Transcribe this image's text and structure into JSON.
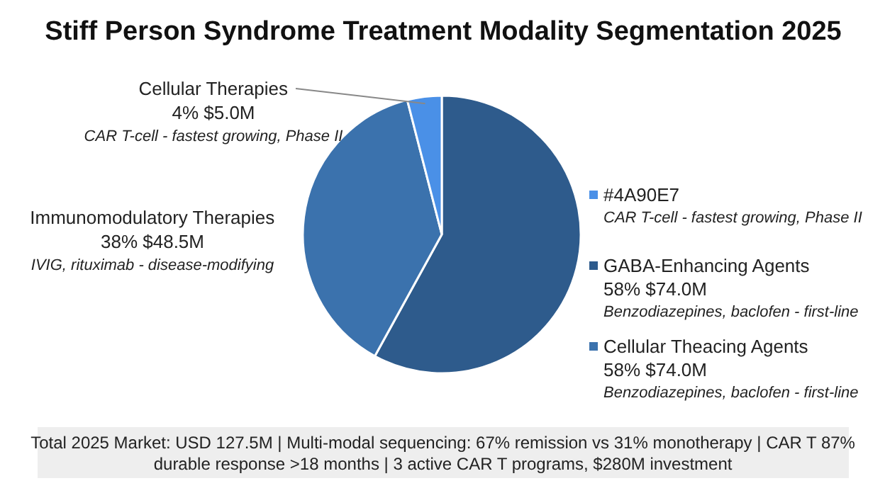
{
  "chart_data": {
    "type": "pie",
    "title": "Stiff Person Syndrome Treatment Modality Segmentation 2025",
    "categories": [
      "GABA-Enhancing Agents",
      "Immunomodulatory Therapies",
      "Cellular Therapies"
    ],
    "values": [
      58,
      38,
      4
    ],
    "colors": [
      "#2e5b8c",
      "#3b72ad",
      "#4a90e7"
    ],
    "value_labels": [
      "58% $74.0M",
      "38% $48.5M",
      "4% $5.0M"
    ],
    "legend": "right",
    "annotations": [
      "Benzodiazepines, baclofen - first-line",
      "IVIG, rituximab - disease-modifying",
      "CAR T-cell - fastest growing, Phase II",
      "#4A90E7",
      "Cellular Theacing Agents",
      "Total 2025 Market: USD 127.5M | Multi-modal sequencing: 67% remission vs 31% monotherapy | CAR T 87%",
      "durable response >18 months | 3 active CAR T programs, $280M investment"
    ]
  }
}
